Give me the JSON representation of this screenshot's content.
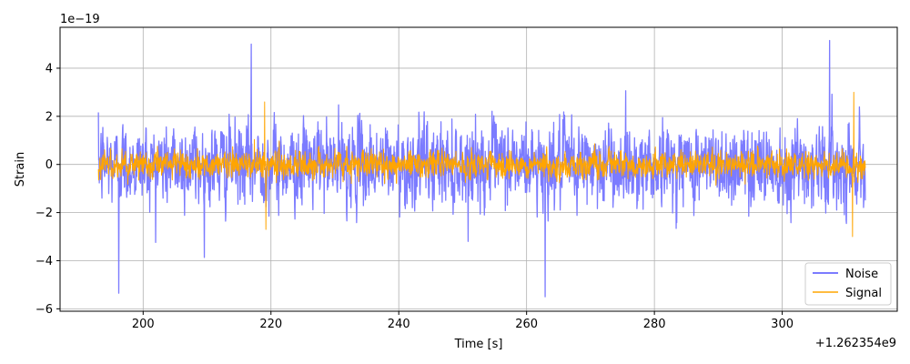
{
  "chart_data": {
    "type": "line",
    "title": "",
    "xlabel": "Time [s]",
    "ylabel": "Strain",
    "x_offset_label": "+1.262354e9",
    "y_scale_label": "1e−19",
    "xlim": [
      187,
      318
    ],
    "ylim": [
      -6.1,
      5.7
    ],
    "xticks": [
      200,
      220,
      240,
      260,
      280,
      300
    ],
    "yticks": [
      -6,
      -4,
      -2,
      0,
      2,
      4
    ],
    "grid": true,
    "legend_position": "lower-right",
    "x_range": [
      193,
      313
    ],
    "series": [
      {
        "name": "Noise",
        "color": "#7b7bff",
        "approx_amplitude_std": 1.2,
        "approx_range": [
          -5.5,
          5.2
        ],
        "notable_points": [
          {
            "x": 196.2,
            "y": -5.35
          },
          {
            "x": 216.9,
            "y": 5.0
          },
          {
            "x": 262.9,
            "y": -5.5
          },
          {
            "x": 307.4,
            "y": 5.15
          }
        ]
      },
      {
        "name": "Signal",
        "color": "#ffa500",
        "approx_amplitude_std": 0.4,
        "approx_range": [
          -3.0,
          3.0
        ],
        "notable_points": [
          {
            "x": 219.0,
            "y": 2.6
          },
          {
            "x": 219.2,
            "y": -2.7
          },
          {
            "x": 311.2,
            "y": 3.0
          },
          {
            "x": 311.0,
            "y": -3.0
          }
        ]
      }
    ]
  }
}
